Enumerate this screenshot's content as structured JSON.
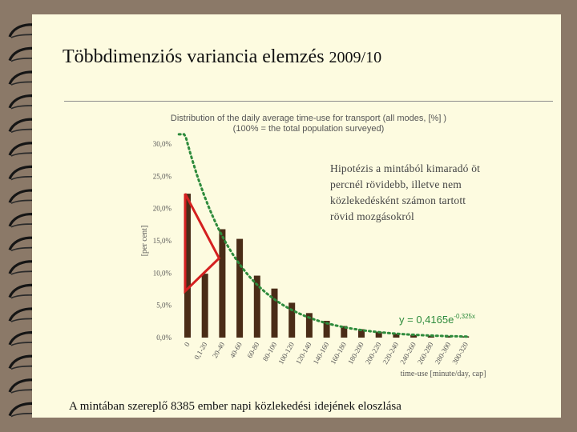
{
  "slide": {
    "title": "Többdimenziós variancia elemzés",
    "title_year": "2009/10",
    "hypothesis_lines": [
      "Hipotézis a mintából kimaradó öt",
      "percnél rövidebb, illetve nem",
      "közlekedésként számon tartott",
      "rövid mozgásokról"
    ],
    "caption": "A mintában szereplő 8385 ember napi közlekedési idejének eloszlása"
  },
  "chart_data": {
    "type": "bar",
    "title_lines": [
      "Distribution of the daily average time-use for transport (all modes, [%] )",
      "(100% = the total population surveyed)"
    ],
    "ylabel": "[per cent]",
    "xlabel": "time-use [minute/day, cap]",
    "ylim": [
      0,
      30
    ],
    "yticks": [
      "0,0%",
      "5,0%",
      "10,0%",
      "15,0%",
      "20,0%",
      "25,0%",
      "30,0%"
    ],
    "categories": [
      "0",
      "0,1-20",
      "20-40",
      "40-60",
      "60-80",
      "80-100",
      "100-120",
      "120-140",
      "140-160",
      "160-180",
      "180-200",
      "200-220",
      "220-240",
      "240-260",
      "260-280",
      "280-300",
      "300-320"
    ],
    "values": [
      22.3,
      9.9,
      16.8,
      15.3,
      9.6,
      7.6,
      5.4,
      3.8,
      2.6,
      1.8,
      1.3,
      0.9,
      0.6,
      0.4,
      0.3,
      0.25,
      0.2
    ],
    "trendline": {
      "equation": "y = 0,4165e",
      "exponent": "-0,325x",
      "a": 0.4165,
      "b": -0.325,
      "color": "#2e8b3c"
    },
    "bar_color": "#4a2c17",
    "highlight_color": "#d42020"
  }
}
